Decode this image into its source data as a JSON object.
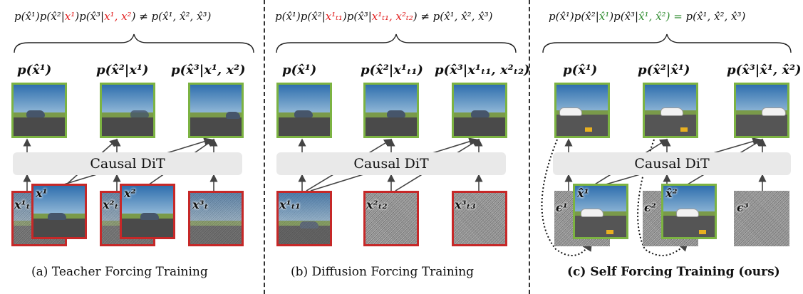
{
  "panels": [
    {
      "id": "a",
      "equation": {
        "prefix": "p(x̂¹)p(x̂²|",
        "red1": "x¹",
        "mid": ")p(x̂³|",
        "red2": "x¹, x²",
        "suffix": ") ≠ p(x̂¹, x̂², x̂³)"
      },
      "dists": [
        "p(x̂¹)",
        "p(x̂²|x¹)",
        "p(x̂³|x¹, x²)"
      ],
      "dit_label": "Causal DiT",
      "inputs": [
        "x¹ₜ",
        "x¹",
        "x²ₜ",
        "x²",
        "x³ₜ"
      ],
      "caption": "(a) Teacher Forcing Training"
    },
    {
      "id": "b",
      "equation": {
        "prefix": "p(x̂¹)p(x̂²|",
        "red1": "x¹ₜ₁",
        "mid": ")p(x̂³|",
        "red2": "x¹ₜ₁, x²ₜ₂",
        "suffix": ") ≠ p(x̂¹, x̂², x̂³)"
      },
      "dists": [
        "p(x̂¹)",
        "p(x̂²|x¹ₜ₁)",
        "p(x̂³|x¹ₜ₁, x²ₜ₂)"
      ],
      "dit_label": "Causal DiT",
      "inputs": [
        "x¹ₜ₁",
        "x²ₜ₂",
        "x³ₜ₃"
      ],
      "caption": "(b) Diffusion Forcing Training"
    },
    {
      "id": "c",
      "equation": {
        "prefix": "p(x̂¹)p(x̂²|",
        "green1": "x̂¹",
        "mid": ")p(x̂³|",
        "green2": "x̂¹, x̂²",
        "suffix_green": ") = ",
        "suffix": "p(x̂¹, x̂², x̂³)"
      },
      "dists": [
        "p(x̂¹)",
        "p(x̂²|x̂¹)",
        "p(x̂³|x̂¹, x̂²)"
      ],
      "dit_label": "Causal DiT",
      "inputs": [
        "ϵ¹",
        "x̂¹",
        "ϵ²",
        "x̂²",
        "ϵ³"
      ],
      "caption": "(c) Self Forcing Training (ours)"
    }
  ]
}
